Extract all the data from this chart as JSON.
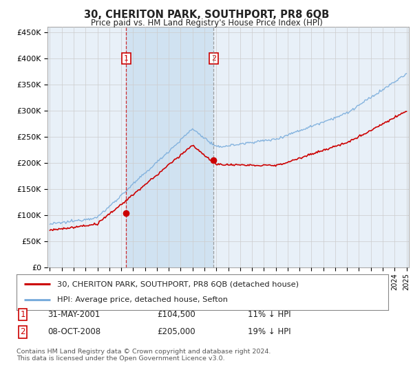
{
  "title": "30, CHERITON PARK, SOUTHPORT, PR8 6QB",
  "subtitle": "Price paid vs. HM Land Registry's House Price Index (HPI)",
  "ylim": [
    0,
    460000
  ],
  "yticks": [
    0,
    50000,
    100000,
    150000,
    200000,
    250000,
    300000,
    350000,
    400000,
    450000
  ],
  "year_start": 1995,
  "year_end": 2025,
  "hpi_color": "#7aaddc",
  "price_color": "#cc0000",
  "background_color": "#ffffff",
  "plot_bg_color": "#e8f0f8",
  "grid_color": "#cccccc",
  "shade_color": "#cce0f0",
  "legend_label_red": "30, CHERITON PARK, SOUTHPORT, PR8 6QB (detached house)",
  "legend_label_blue": "HPI: Average price, detached house, Sefton",
  "sale1_date": "31-MAY-2001",
  "sale1_price": 104500,
  "sale1_year": 2001.42,
  "sale1_pct": "11%",
  "sale2_date": "08-OCT-2008",
  "sale2_price": 205000,
  "sale2_year": 2008.77,
  "sale2_pct": "19%",
  "footer": "Contains HM Land Registry data © Crown copyright and database right 2024.\nThis data is licensed under the Open Government Licence v3.0."
}
